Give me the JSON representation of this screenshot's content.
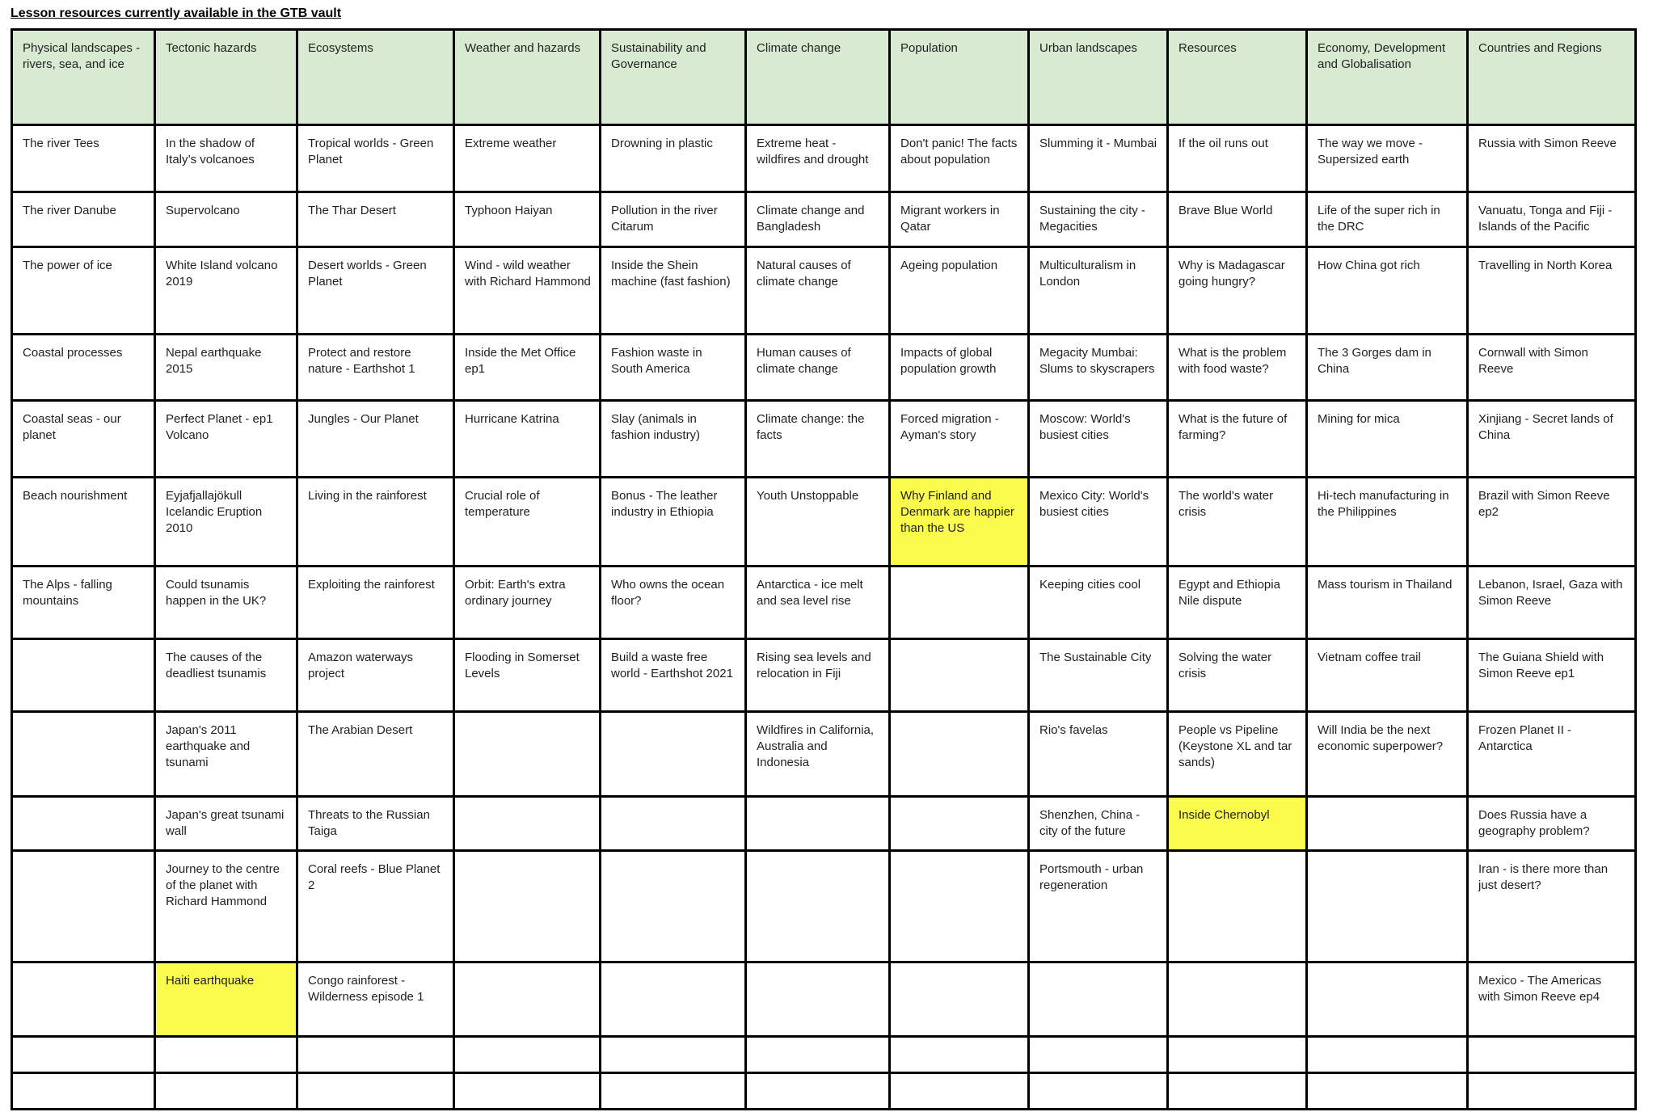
{
  "title": "Lesson resources currently available in the GTB vault",
  "colors": {
    "header_green": "#d9ead3",
    "highlight_yellow": "#fbfb4d",
    "grid_border": "#000000"
  },
  "table": {
    "columns": [
      "Physical landscapes - rivers, sea, and ice",
      "Tectonic hazards",
      "Ecosystems",
      "Weather and hazards",
      "Sustainability and Governance",
      "Climate change",
      "Population",
      "Urban landscapes",
      "Resources",
      "Economy, Development and Globalisation",
      "Countries and Regions"
    ],
    "rows": [
      [
        "The river Tees",
        "In the shadow of Italy’s volcanoes",
        "Tropical worlds - Green Planet",
        "Extreme weather",
        "Drowning in plastic",
        "Extreme heat - wildfires and drought",
        "Don't panic! The facts about population",
        "Slumming it - Mumbai",
        "If the oil runs out",
        "The way we move - Supersized earth",
        "Russia with Simon Reeve"
      ],
      [
        "The river Danube",
        "Supervolcano",
        "The Thar Desert",
        "Typhoon Haiyan",
        "Pollution in the river Citarum",
        "Climate change and Bangladesh",
        "Migrant workers in Qatar",
        "Sustaining the city - Megacities",
        "Brave Blue World",
        "Life of the super rich in the DRC",
        "Vanuatu, Tonga and Fiji - Islands of the Pacific"
      ],
      [
        "The power of ice",
        "White Island volcano 2019",
        "Desert worlds - Green Planet",
        "Wind - wild weather with Richard Hammond",
        "Inside the Shein machine (fast fashion)",
        "Natural causes of climate change",
        "Ageing population",
        "Multiculturalism in London",
        "Why is Madagascar going hungry?",
        "How China got rich",
        "Travelling in North Korea"
      ],
      [
        "Coastal processes",
        "Nepal earthquake 2015",
        "Protect and restore nature - Earthshot 1",
        "Inside the Met Office ep1",
        "Fashion waste in South America",
        "Human causes of climate change",
        "Impacts of global population growth",
        "Megacity Mumbai: Slums to skyscrapers",
        "What is the problem with food waste?",
        "The 3 Gorges dam in China",
        "Cornwall with Simon Reeve"
      ],
      [
        "Coastal seas - our planet",
        "Perfect Planet - ep1 Volcano",
        "Jungles - Our Planet",
        "Hurricane Katrina",
        "Slay (animals in fashion industry)",
        "Climate change: the facts",
        "Forced migration - Ayman's story",
        "Moscow: World's busiest cities",
        "What is the future of farming?",
        "Mining for mica",
        "Xinjiang - Secret lands of China"
      ],
      [
        "Beach nourishment",
        "Eyjafjallajökull Icelandic Eruption 2010",
        "Living in the rainforest",
        "Crucial role of temperature",
        "Bonus - The leather industry in Ethiopia",
        "Youth Unstoppable",
        "Why Finland and Denmark are happier than the US",
        "Mexico City: World's busiest cities",
        "The world's water crisis",
        "Hi-tech manufacturing in the Philippines",
        "Brazil with Simon Reeve ep2"
      ],
      [
        "The Alps - falling mountains",
        "Could tsunamis happen in the UK?",
        "Exploiting the rainforest",
        "Orbit: Earth's extra ordinary journey",
        "Who owns the ocean floor?",
        "Antarctica - ice melt and sea level rise",
        "",
        "Keeping cities cool",
        "Egypt and Ethiopia Nile dispute",
        "Mass tourism in Thailand",
        "Lebanon, Israel, Gaza with Simon Reeve"
      ],
      [
        "",
        "The causes of the deadliest tsunamis",
        "Amazon waterways project",
        "Flooding in Somerset Levels",
        "Build a waste free world - Earthshot 2021",
        "Rising sea levels and relocation in Fiji",
        "",
        "The Sustainable City",
        "Solving the water crisis",
        "Vietnam coffee trail",
        "The Guiana Shield with Simon Reeve ep1"
      ],
      [
        "",
        "Japan's 2011 earthquake and tsunami",
        "The Arabian Desert",
        "",
        "",
        "Wildfires in California, Australia and Indonesia",
        "",
        "Rio's favelas",
        "People vs Pipeline (Keystone XL and tar sands)",
        "Will India be the next economic superpower?",
        "Frozen Planet II - Antarctica"
      ],
      [
        "",
        "Japan's great tsunami wall",
        "Threats to the Russian Taiga",
        "",
        "",
        "",
        "",
        "Shenzhen, China - city of the future",
        "Inside Chernobyl",
        "",
        "Does Russia have a geography problem?"
      ],
      [
        "",
        "Journey to the centre of the planet with Richard Hammond",
        "Coral reefs - Blue Planet 2",
        "",
        "",
        "",
        "",
        "Portsmouth - urban regeneration",
        "",
        "",
        "Iran - is there more than just desert?"
      ],
      [
        "",
        "Haiti earthquake",
        "Congo rainforest - Wilderness episode 1",
        "",
        "",
        "",
        "",
        "",
        "",
        "",
        "Mexico - The Americas with Simon Reeve ep4"
      ],
      [
        "",
        "",
        "",
        "",
        "",
        "",
        "",
        "",
        "",
        "",
        ""
      ],
      [
        "",
        "",
        "",
        "",
        "",
        "",
        "",
        "",
        "",
        "",
        ""
      ]
    ],
    "highlights": [
      {
        "row": 5,
        "col": 6
      },
      {
        "row": 9,
        "col": 8
      },
      {
        "row": 11,
        "col": 1
      }
    ]
  }
}
